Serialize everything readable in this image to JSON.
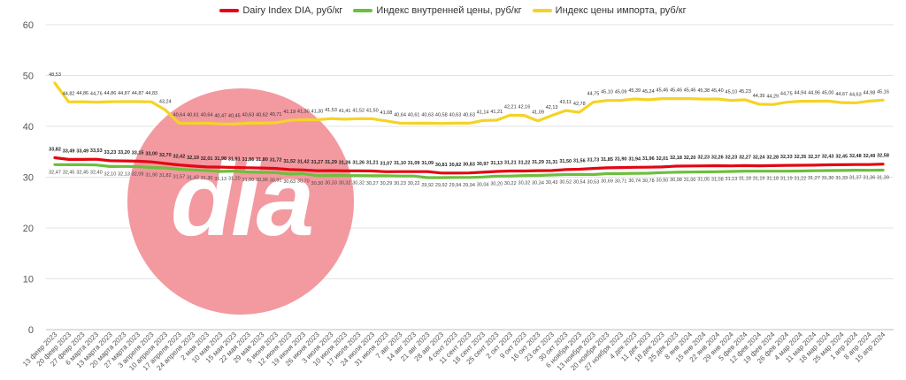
{
  "chart_data": {
    "type": "line",
    "ylim": [
      0,
      60
    ],
    "yticks": [
      0,
      10,
      20,
      30,
      40,
      50,
      60
    ],
    "grid": true,
    "legend_position": "top",
    "x_tick_labels": [
      "13 февр 2023",
      "20 февр 2023",
      "27 февр 2023",
      "6 марта 2023",
      "13 марта 2023",
      "20 марта 2023",
      "27 марта 2023",
      "3 апреля 2023",
      "10 апреля 2023",
      "17 апреля 2023",
      "24 апреля 2023",
      "2 мая 2023",
      "10 мая 2023",
      "15 мая 2023",
      "22 мая 2023",
      "29 мая 2023",
      "5 июня 2023",
      "12 июня 2023",
      "19 июня 2023",
      "26 июня 2023",
      "3 июля 2023",
      "10 июля 2023",
      "17 июля 2023",
      "24 июля 2023",
      "31 июля 2023",
      "7 авг 2023",
      "14 авг 2023",
      "21 авг 2023",
      "28 авг 2023",
      "4 сент 2023",
      "11 сент 2023",
      "18 сент 2023",
      "25 сент 2023",
      "2 окт 2023",
      "9 окт 2023",
      "16 окт 2023",
      "23 окт 2023",
      "30 окт 2023",
      "6 ноября 2023",
      "13 ноября 2023",
      "20 ноября 2023",
      "27 ноября 2023",
      "4 дек 2023",
      "11 дек 2023",
      "18 дек 2023",
      "25 дек 2023",
      "8 янв 2024",
      "15 янв 2024",
      "22 янв 2024",
      "29 янв 2024",
      "5 фев 2024",
      "12 фев 2024",
      "19 фев 2024",
      "26 фев 2024",
      "4 мар 2024",
      "11 мар 2024",
      "18 мар 2024",
      "25 мар 2024",
      "1 апр 2024",
      "8 апр 2024",
      "15 апр 2024"
    ],
    "series": [
      {
        "name": "Dairy Index DIA, руб/кг",
        "color": "#e30613",
        "values": [
          33.82,
          33.49,
          33.49,
          33.53,
          33.23,
          33.2,
          33.15,
          33.0,
          32.7,
          32.42,
          32.19,
          32.01,
          31.98,
          31.91,
          31.86,
          31.8,
          31.72,
          31.52,
          31.42,
          31.27,
          31.29,
          31.26,
          31.26,
          31.21,
          31.07,
          31.1,
          31.09,
          31.09,
          30.81,
          30.82,
          30.83,
          30.97,
          31.13,
          31.21,
          31.22,
          31.29,
          31.31,
          31.5,
          31.56,
          31.73,
          31.85,
          31.9,
          31.94,
          31.96,
          32.01,
          32.18,
          32.2,
          32.23,
          32.26,
          32.23,
          32.27,
          32.24,
          32.28,
          32.33,
          32.35,
          32.37,
          32.43,
          32.45,
          32.48,
          32.49,
          32.58
        ]
      },
      {
        "name": "Индекс внутренней цены, руб/кг",
        "color": "#6cbf3c",
        "values": [
          32.47,
          32.45,
          32.45,
          32.4,
          32.1,
          32.13,
          32.09,
          31.9,
          31.82,
          31.57,
          31.42,
          31.3,
          31.13,
          31.2,
          31.0,
          30.96,
          30.91,
          30.63,
          30.7,
          30.3,
          30.33,
          30.32,
          30.32,
          30.27,
          30.29,
          30.23,
          30.22,
          29.92,
          29.92,
          29.94,
          29.94,
          30.04,
          30.2,
          30.22,
          30.32,
          30.34,
          30.43,
          30.52,
          30.54,
          30.53,
          30.69,
          30.71,
          30.74,
          30.78,
          30.9,
          30.98,
          31.0,
          31.05,
          31.08,
          31.13,
          31.18,
          31.19,
          31.18,
          31.19,
          31.22,
          31.27,
          31.3,
          31.33,
          31.37,
          31.36,
          31.39
        ]
      },
      {
        "name": "Индекс цены импорта, руб/кг",
        "color": "#f5d326",
        "values": [
          48.53,
          44.82,
          44.86,
          44.76,
          44.86,
          44.87,
          44.87,
          44.83,
          43.24,
          40.64,
          40.61,
          40.64,
          40.47,
          40.45,
          40.63,
          40.62,
          40.71,
          41.19,
          41.3,
          41.3,
          41.53,
          41.41,
          41.52,
          41.5,
          41.08,
          40.64,
          40.61,
          40.63,
          40.58,
          40.63,
          40.63,
          41.14,
          41.21,
          42.21,
          42.16,
          41.09,
          42.13,
          43.11,
          42.78,
          44.75,
          45.1,
          45.09,
          45.39,
          45.24,
          45.46,
          45.46,
          45.46,
          45.38,
          45.4,
          45.1,
          45.23,
          44.39,
          44.29,
          44.75,
          44.94,
          44.96,
          45.0,
          44.67,
          44.63,
          44.98,
          45.16
        ]
      }
    ]
  },
  "watermark": {
    "text": "dia",
    "circle_color": "#f2949b",
    "text_color": "#ffffff"
  }
}
